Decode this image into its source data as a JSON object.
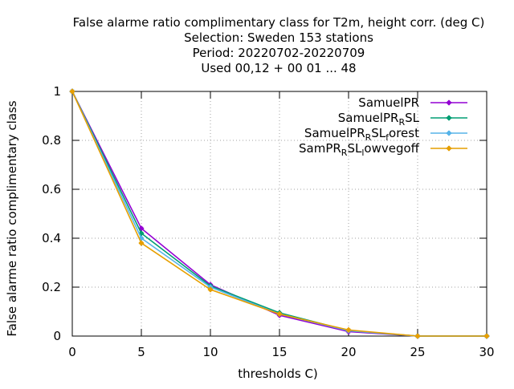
{
  "chart_data": {
    "type": "line",
    "title_lines": [
      "False alarme ratio complimentary class  for T2m, height corr. (deg C)",
      "Selection: Sweden    153 stations",
      "Period: 20220702-20220709",
      "Used  00,12  + 00 01 ... 48"
    ],
    "xlabel": "thresholds C)",
    "ylabel": "False alarme ratio complimentary class",
    "xlim": [
      0,
      30
    ],
    "ylim": [
      0,
      1
    ],
    "xticks": [
      0,
      5,
      10,
      15,
      20,
      25,
      30
    ],
    "yticks": [
      0,
      0.2,
      0.4,
      0.6,
      0.8,
      1
    ],
    "ytick_labels": [
      "0",
      "0.2",
      "0.4",
      "0.6",
      "0.8",
      "1"
    ],
    "grid": true,
    "legend_position": "top-right",
    "x": [
      0,
      5,
      10,
      15,
      20,
      25,
      30
    ],
    "series": [
      {
        "name": "SamuelPR",
        "legend_parts": [
          {
            "t": "SamuelPR"
          }
        ],
        "color": "#9400d3",
        "values": [
          1.0,
          0.44,
          0.21,
          0.085,
          0.018,
          0.0,
          0.0
        ]
      },
      {
        "name": "SamuelPR_RSL",
        "legend_parts": [
          {
            "t": "SamuelPR"
          },
          {
            "t": "R",
            "sub": true
          },
          {
            "t": "SL"
          }
        ],
        "color": "#009e73",
        "values": [
          1.0,
          0.42,
          0.205,
          0.095,
          0.022,
          0.0,
          0.0
        ]
      },
      {
        "name": "SamuelPR_RSL_forest",
        "legend_parts": [
          {
            "t": "SamuelPR"
          },
          {
            "t": "R",
            "sub": true
          },
          {
            "t": "SL"
          },
          {
            "t": "f",
            "sub": true
          },
          {
            "t": "orest"
          }
        ],
        "color": "#56b4e9",
        "values": [
          1.0,
          0.4,
          0.2,
          0.09,
          0.022,
          0.0,
          0.0
        ]
      },
      {
        "name": "SamPR_RSL_lowvegoff",
        "legend_parts": [
          {
            "t": "SamPR"
          },
          {
            "t": "R",
            "sub": true
          },
          {
            "t": "SL"
          },
          {
            "t": "l",
            "sub": true
          },
          {
            "t": "owvegoff"
          }
        ],
        "color": "#e69f00",
        "values": [
          1.0,
          0.38,
          0.19,
          0.09,
          0.025,
          0.0,
          0.0
        ]
      }
    ]
  }
}
